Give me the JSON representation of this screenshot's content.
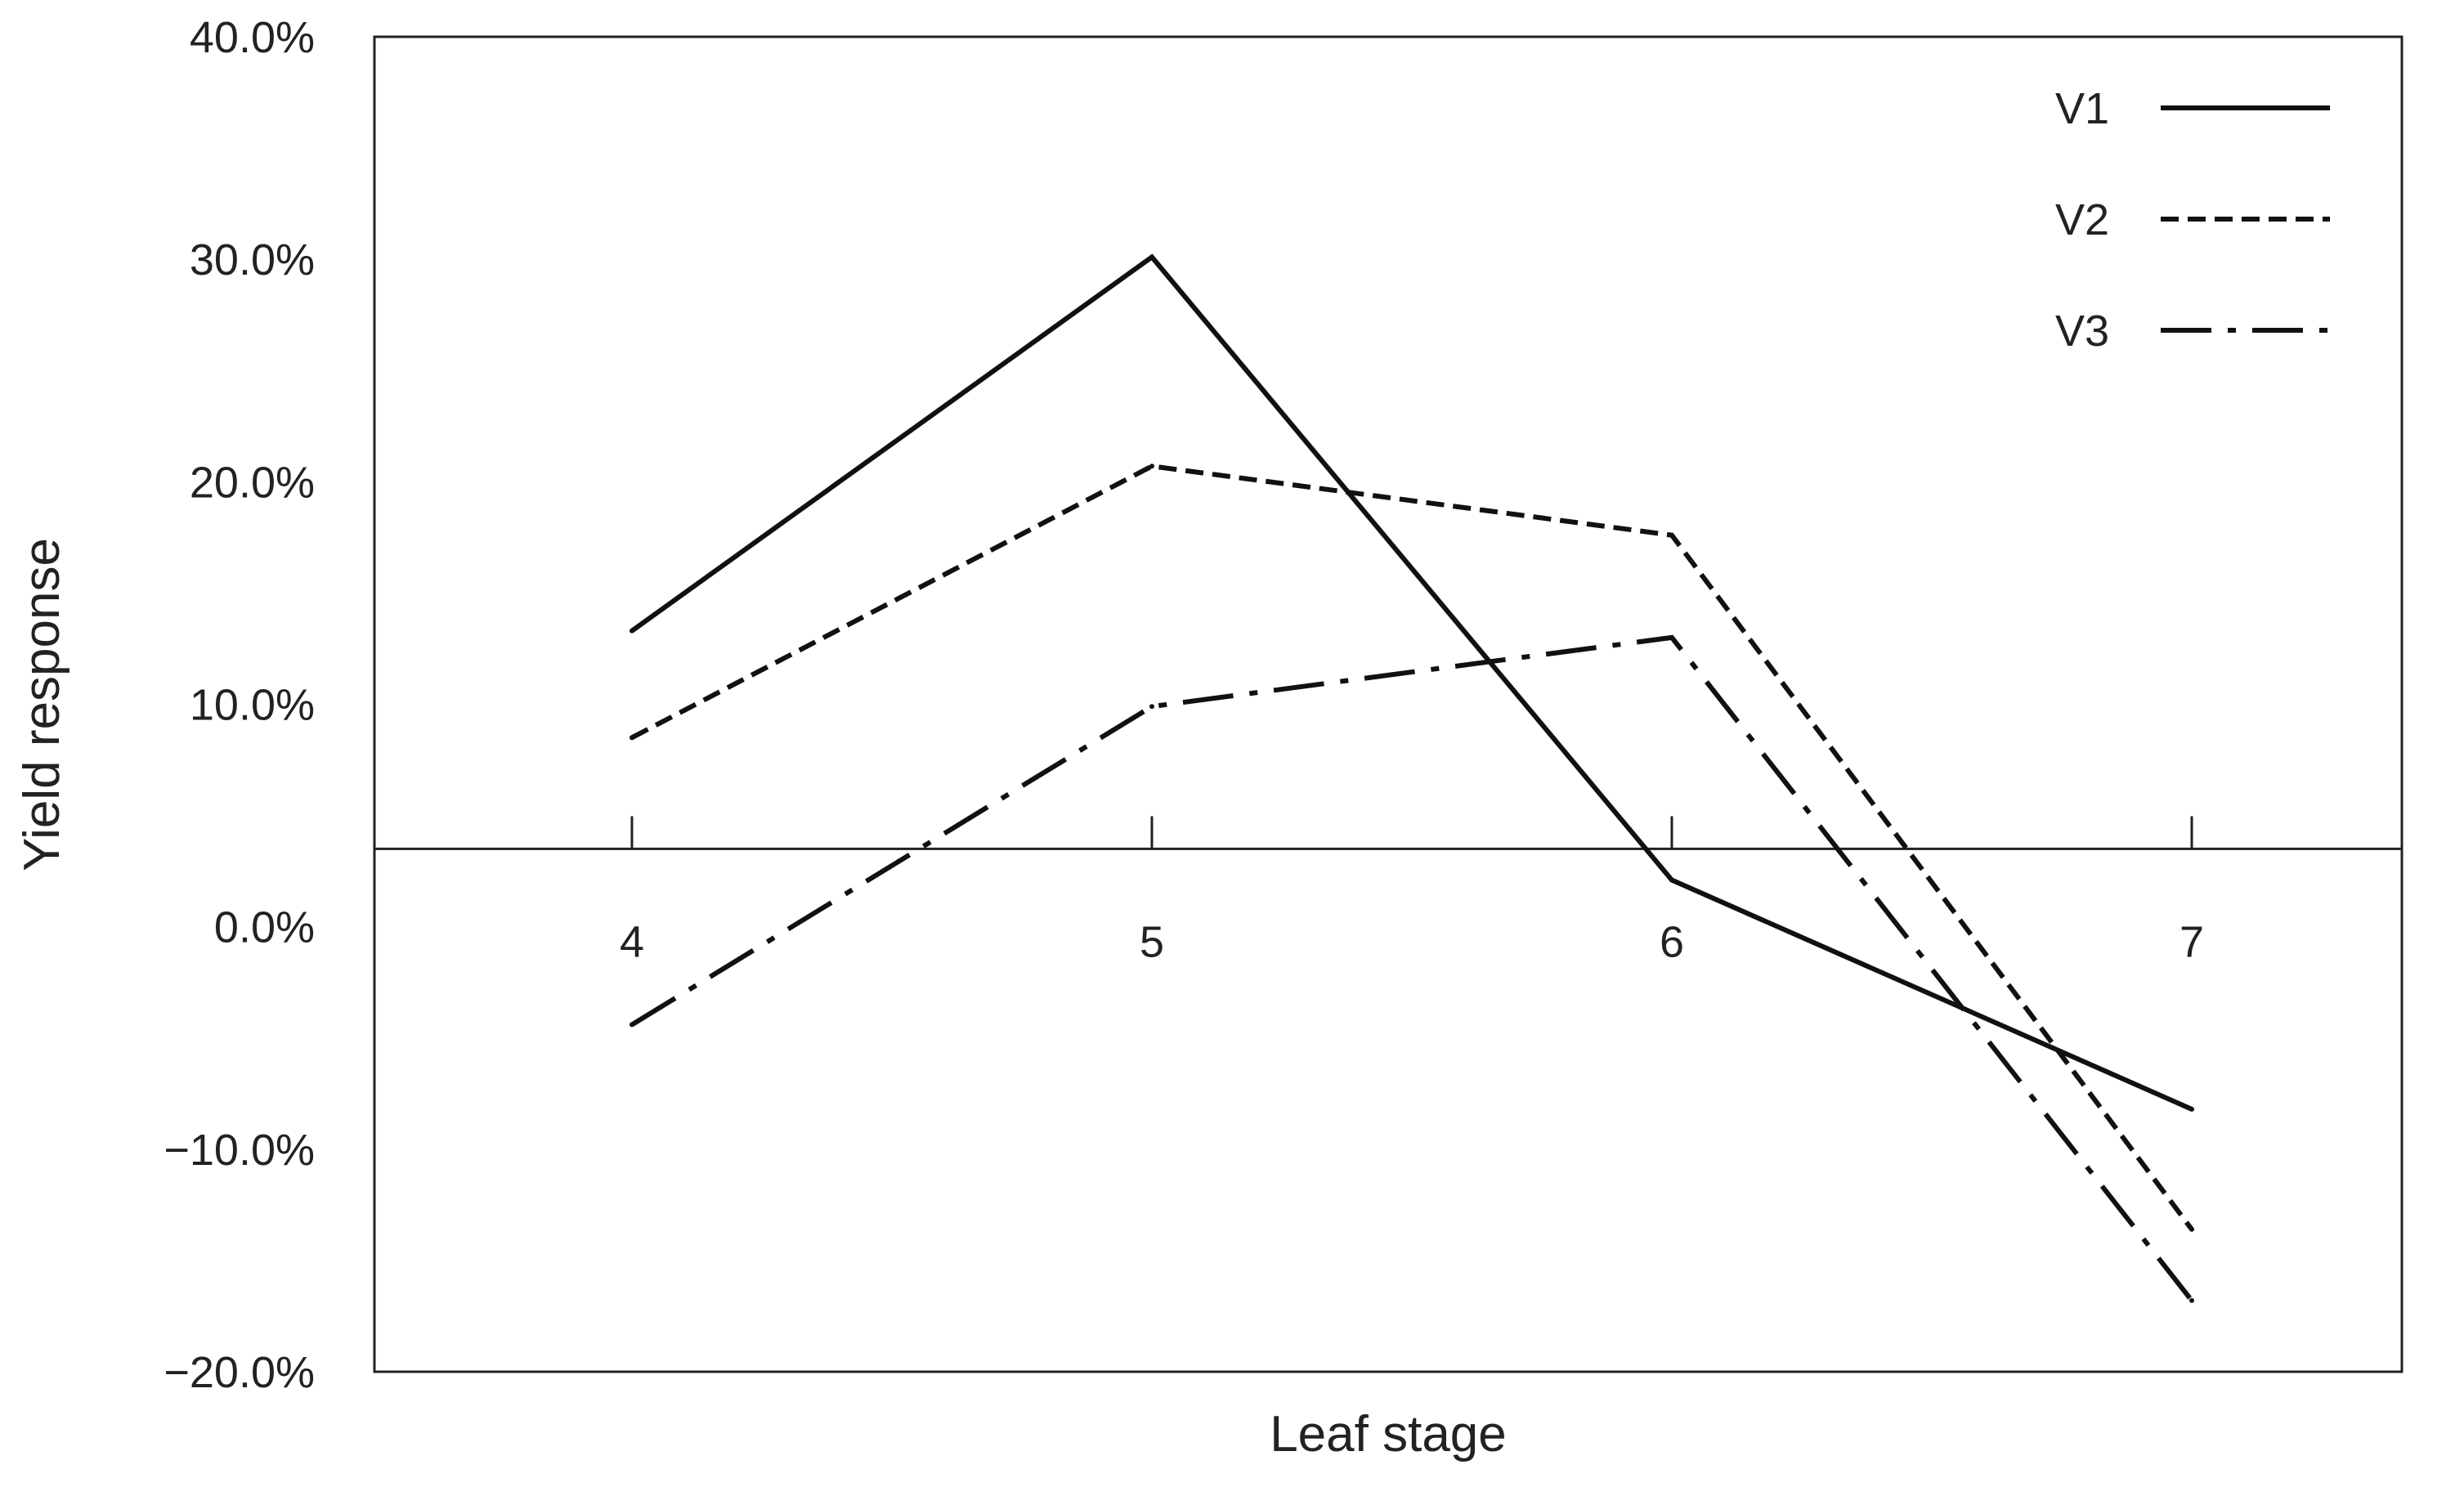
{
  "chart_data": {
    "type": "line",
    "title": "",
    "xlabel": "Leaf stage",
    "ylabel": "Yield response",
    "x": [
      4,
      5,
      6,
      7
    ],
    "x_tick_labels": [
      "4",
      "5",
      "6",
      "7"
    ],
    "y_tick_labels": [
      "40.0%",
      "30.0%",
      "20.0%",
      "10.0%",
      "0.0%",
      "−10.0%",
      "−20.0%"
    ],
    "ylim": [
      -20,
      40
    ],
    "ytick_values": [
      40,
      30,
      20,
      10,
      0,
      -10,
      -20
    ],
    "y_unit": "%",
    "grid": false,
    "legend_position": "top-right",
    "reference_line_y": 3.5,
    "series": [
      {
        "name": "V1",
        "values": [
          13.3,
          30.1,
          2.1,
          -8.2
        ],
        "style": "solid",
        "color": "#111111"
      },
      {
        "name": "V2",
        "values": [
          8.5,
          20.7,
          17.6,
          -13.6
        ],
        "style": "dashed",
        "color": "#111111"
      },
      {
        "name": "V3",
        "values": [
          -4.4,
          9.9,
          13.0,
          -16.8
        ],
        "style": "dash-dot",
        "color": "#111111"
      }
    ]
  }
}
